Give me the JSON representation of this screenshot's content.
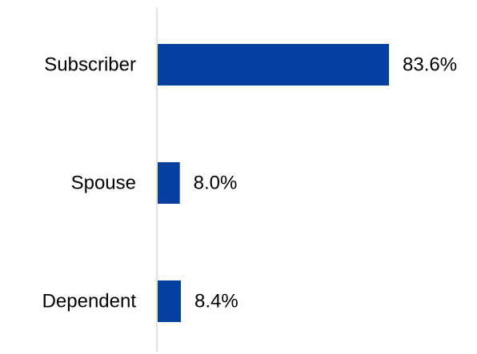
{
  "chart_data": {
    "type": "bar",
    "orientation": "horizontal",
    "categories": [
      "Subscriber",
      "Spouse",
      "Dependent"
    ],
    "values": [
      83.6,
      8.0,
      8.4
    ],
    "value_labels": [
      "83.6%",
      "8.0%",
      "8.4%"
    ],
    "xlim": [
      0,
      100
    ],
    "grid": false,
    "legend": "none",
    "bar_color": "#0340A0",
    "axis_color": "#D9D9D9"
  }
}
